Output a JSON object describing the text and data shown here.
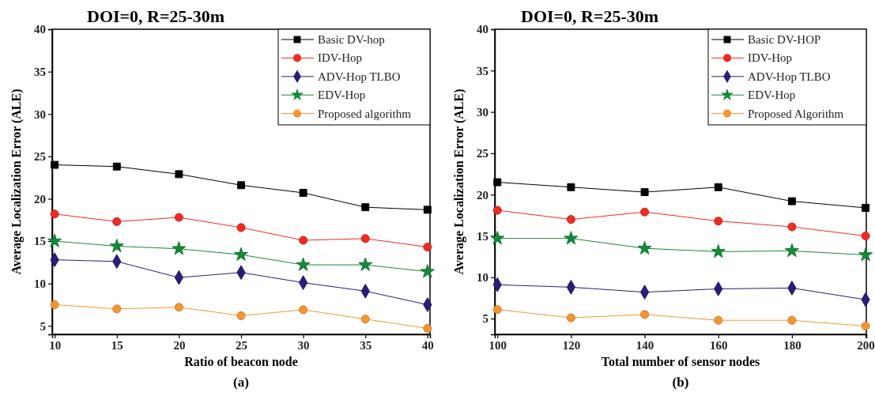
{
  "chart_data": [
    {
      "type": "line",
      "title": "DOI=0, R=25-30m",
      "xlabel": "Ratio of beacon node",
      "ylabel": "Average Localization Error (ALE)",
      "annotations": [
        "(a)"
      ],
      "x": [
        10,
        15,
        20,
        25,
        30,
        35,
        40
      ],
      "xlim": [
        9.8,
        40.2
      ],
      "xticks": [
        10,
        15,
        20,
        25,
        30,
        35,
        40
      ],
      "ylim": [
        4,
        40
      ],
      "yticks": [
        5,
        10,
        15,
        20,
        25,
        30,
        35,
        40
      ],
      "legend": "top right",
      "grid": false,
      "line_style": "solid",
      "series": [
        {
          "name": "Basic DV-hop",
          "color": "#000000",
          "marker": "square",
          "values": [
            24.0,
            23.8,
            22.9,
            21.6,
            20.7,
            19.0,
            18.7
          ]
        },
        {
          "name": "IDV-Hop",
          "color": "#ee2b24",
          "marker": "circle",
          "values": [
            18.2,
            17.3,
            17.8,
            16.6,
            15.1,
            15.3,
            14.3
          ]
        },
        {
          "name": "ADV-Hop TLBO",
          "color": "#2e1a78",
          "marker": "diamond",
          "values": [
            12.8,
            12.6,
            10.7,
            11.3,
            10.1,
            9.1,
            7.5
          ]
        },
        {
          "name": "EDV-Hop",
          "color": "#14893a",
          "marker": "star",
          "values": [
            15.0,
            14.4,
            14.1,
            13.4,
            12.2,
            12.2,
            11.4
          ]
        },
        {
          "name": "Proposed algorithm",
          "color": "#f39632",
          "marker": "circle",
          "values": [
            7.5,
            7.0,
            7.2,
            6.2,
            6.9,
            5.8,
            4.7
          ]
        }
      ]
    },
    {
      "type": "line",
      "title": "DOI=0, R=25-30m",
      "xlabel": "Total number of sensor nodes",
      "ylabel": "Average Localization Error (ALE)",
      "annotations": [
        "(b)"
      ],
      "x": [
        100,
        120,
        140,
        160,
        180,
        200
      ],
      "xlim": [
        99.3,
        200.2
      ],
      "xticks": [
        100,
        120,
        140,
        160,
        180,
        200
      ],
      "ylim": [
        3.1,
        40
      ],
      "yticks": [
        5,
        10,
        15,
        20,
        25,
        30,
        35,
        40
      ],
      "legend": "top right",
      "grid": false,
      "line_style": "solid",
      "series": [
        {
          "name": "Basic DV-HOP",
          "color": "#000000",
          "marker": "square",
          "values": [
            21.5,
            20.9,
            20.3,
            20.9,
            19.2,
            18.4
          ]
        },
        {
          "name": "IDV-Hop",
          "color": "#ee2b24",
          "marker": "circle",
          "values": [
            18.1,
            17.0,
            17.9,
            16.8,
            16.1,
            15.0
          ]
        },
        {
          "name": "ADV-Hop TLBO",
          "color": "#2e1a78",
          "marker": "diamond",
          "values": [
            9.1,
            8.8,
            8.2,
            8.6,
            8.7,
            7.3
          ]
        },
        {
          "name": "EDV-Hop",
          "color": "#14893a",
          "marker": "star",
          "values": [
            14.7,
            14.7,
            13.5,
            13.1,
            13.2,
            12.7
          ]
        },
        {
          "name": "Proposed Algorithm",
          "color": "#f39632",
          "marker": "circle",
          "values": [
            6.1,
            5.1,
            5.5,
            4.8,
            4.8,
            4.1
          ]
        }
      ]
    }
  ]
}
